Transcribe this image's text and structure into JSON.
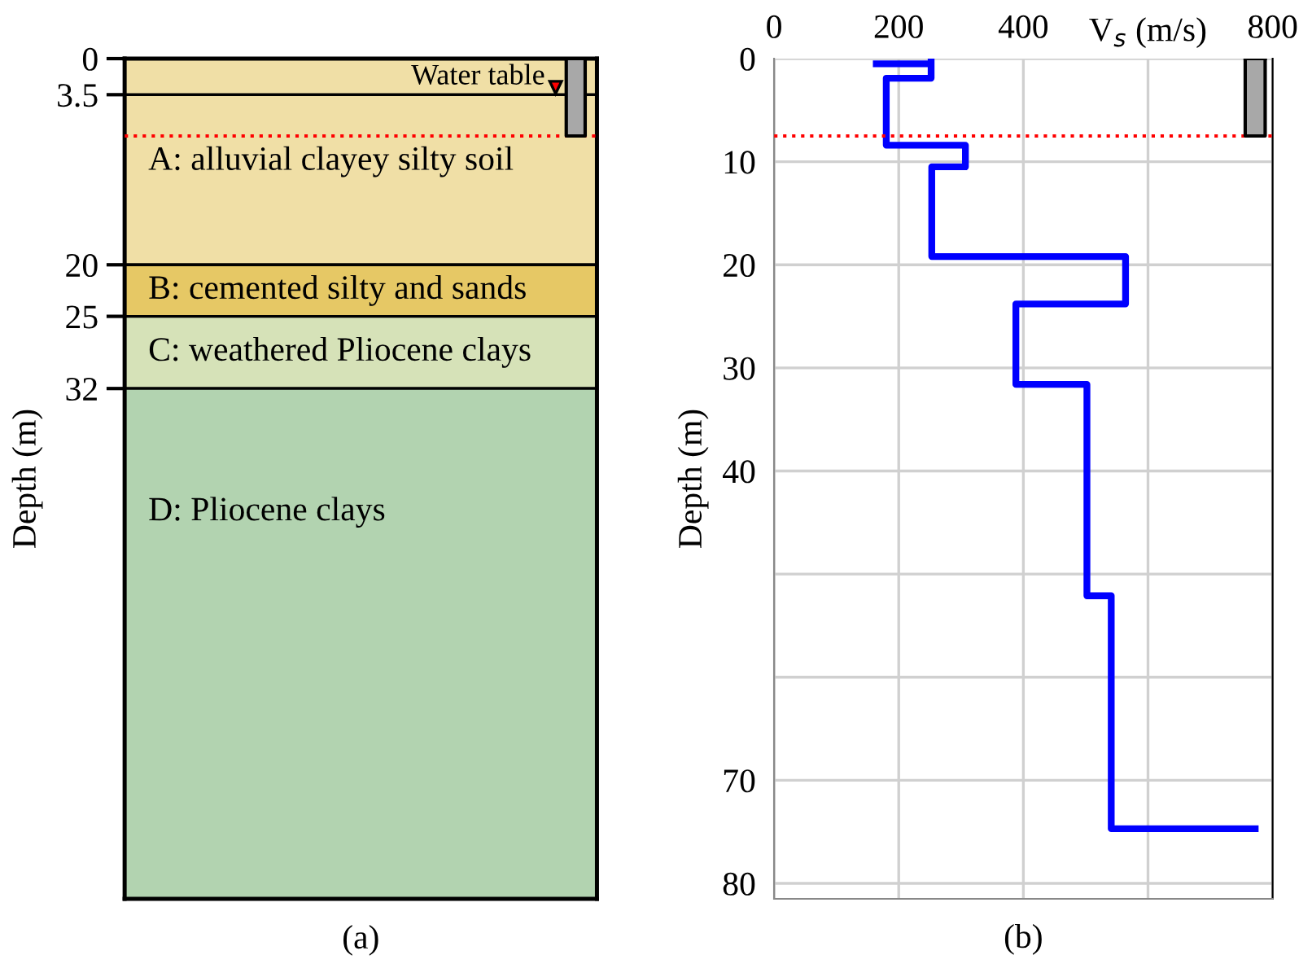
{
  "chart_data": [
    {
      "type": "bar",
      "stacked": true,
      "categories": [
        null
      ],
      "ylabel": "Depth (m)",
      "xlabel": "(a)",
      "ylim": [
        81.5,
        0
      ],
      "yticks": [
        0,
        3.5,
        20,
        25,
        32
      ],
      "tick_labels": "y",
      "grid": false,
      "legend": false,
      "series": [
        {
          "name": "A: alluvial clayey silty soil",
          "color": "#f0dfa6",
          "values": [
            20
          ]
        },
        {
          "name": "B: cemented silty and sands",
          "color": "#e6c865",
          "values": [
            5
          ]
        },
        {
          "name": "C: weathered Pliocene clays",
          "color": "#d6e2b8",
          "values": [
            7
          ]
        },
        {
          "name": "D: Pliocene clays",
          "color": "#b2d3b0",
          "values": [
            49.5
          ]
        }
      ],
      "ref_lines": [
        {
          "axis": "y",
          "value": 3.5,
          "label": "Water table",
          "color": "#000000",
          "line_style": "solid"
        },
        {
          "axis": "y",
          "value": 7.5,
          "color": "#ff0000",
          "line_style": "dotted"
        }
      ]
    },
    {
      "type": "line",
      "ylabel": "Depth (m)",
      "xlabel": "V$_{s}$ (m/s)",
      "xlim": [
        0,
        800
      ],
      "xticks": [
        0,
        200,
        400,
        {
          "value": 600,
          "label": null
        },
        800
      ],
      "ylim": [
        81.5,
        0
      ],
      "yticks": [
        0,
        10,
        20,
        30,
        40,
        {
          "value": 50,
          "label": null
        },
        {
          "value": 60,
          "label": null
        },
        70,
        80
      ],
      "grid": true,
      "legend": false,
      "marker": "none",
      "line_style": "solid",
      "series": [
        {
          "color": "#0000ff",
          "x": [
            164,
            252,
            252,
            252,
            180,
            180,
            307,
            307,
            253,
            253,
            564,
            564,
            388,
            388,
            502,
            502,
            541,
            541,
            772
          ],
          "values": [
            0.5,
            0.5,
            0,
            1.9,
            1.9,
            8.4,
            8.4,
            10.5,
            10.5,
            19.2,
            19.2,
            23.8,
            23.8,
            31.6,
            31.6,
            52.1,
            52.1,
            74.7,
            74.7
          ]
        }
      ],
      "ref_lines": [
        {
          "axis": "y",
          "value": 7.5,
          "color": "#ff0000",
          "line_style": "dotted"
        }
      ],
      "annotations": [
        "(b)"
      ]
    }
  ]
}
